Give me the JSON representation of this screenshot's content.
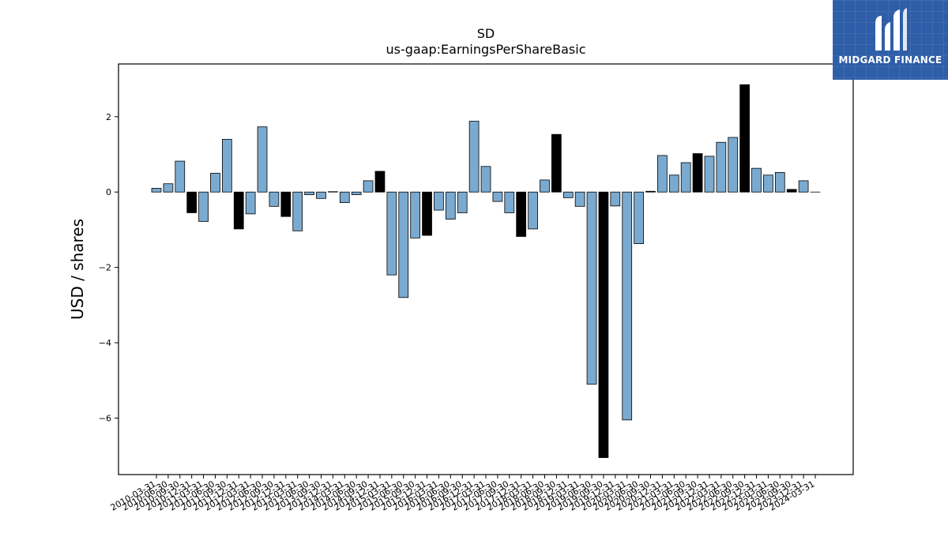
{
  "chart_data": {
    "type": "bar",
    "title": "SD",
    "subtitle": "us-gaap:EarningsPerShareBasic",
    "xlabel": "",
    "ylabel": "USD / shares",
    "ylim": [
      -7.5,
      3.4
    ],
    "yticks": [
      2,
      0,
      -2,
      -4,
      -6
    ],
    "ytick_labels": [
      "2",
      "0",
      "−2",
      "−4",
      "−6"
    ],
    "grid": false,
    "bar_colors": {
      "normal": "#7aaad0",
      "highlight": "#000000",
      "edge": "#000000"
    },
    "categories": [
      "2010-03-31",
      "2010-06-30",
      "2010-09-30",
      "2010-12-31",
      "2011-03-31",
      "2011-06-30",
      "2011-09-30",
      "2011-12-31",
      "2012-03-31",
      "2012-06-30",
      "2012-09-30",
      "2012-12-31",
      "2013-03-31",
      "2013-06-30",
      "2013-09-30",
      "2013-12-31",
      "2014-03-31",
      "2014-06-30",
      "2014-09-30",
      "2014-12-31",
      "2015-03-31",
      "2015-06-30",
      "2015-09-30",
      "2015-12-31",
      "2016-03-31",
      "2016-06-30",
      "2016-09-30",
      "2016-12-31",
      "2017-03-31",
      "2017-06-30",
      "2017-09-30",
      "2017-12-31",
      "2018-03-31",
      "2018-06-30",
      "2018-09-30",
      "2018-12-31",
      "2019-03-31",
      "2019-06-30",
      "2019-09-30",
      "2019-12-31",
      "2020-03-31",
      "2020-06-30",
      "2020-09-30",
      "2020-12-31",
      "2021-03-31",
      "2021-06-30",
      "2021-09-30",
      "2021-12-31",
      "2022-03-31",
      "2022-06-30",
      "2022-09-30",
      "2022-12-31",
      "2023-03-31",
      "2023-06-30",
      "2023-09-30",
      "2023-12-31",
      "2024-03-31"
    ],
    "values": [
      0.1,
      0.22,
      0.82,
      -0.55,
      -0.78,
      0.5,
      1.4,
      -0.98,
      -0.58,
      1.73,
      -0.38,
      -0.65,
      -1.03,
      -0.07,
      -0.17,
      0.01,
      -0.28,
      -0.07,
      0.3,
      0.55,
      -2.2,
      -2.8,
      -1.22,
      -1.15,
      -0.48,
      -0.72,
      -0.55,
      1.88,
      0.68,
      -0.25,
      -0.55,
      -1.18,
      -0.98,
      0.32,
      1.53,
      -0.15,
      -0.38,
      -5.1,
      -7.05,
      -0.37,
      -6.05,
      -1.37,
      0.02,
      0.97,
      0.45,
      0.78,
      1.02,
      0.95,
      1.32,
      1.45,
      2.85,
      0.63,
      0.45,
      0.52,
      0.07,
      0.3,
      0.0
    ],
    "highlighted": [
      false,
      false,
      false,
      true,
      false,
      false,
      false,
      true,
      false,
      false,
      false,
      true,
      false,
      false,
      false,
      true,
      false,
      false,
      false,
      true,
      false,
      false,
      false,
      true,
      false,
      false,
      false,
      false,
      false,
      false,
      false,
      true,
      false,
      false,
      true,
      false,
      false,
      false,
      true,
      false,
      false,
      false,
      true,
      false,
      false,
      false,
      true,
      false,
      false,
      false,
      true,
      false,
      false,
      false,
      true,
      false,
      false
    ]
  },
  "logo": {
    "text": "MIDGARD FINANCE",
    "icon": "midgard-logo-icon"
  }
}
